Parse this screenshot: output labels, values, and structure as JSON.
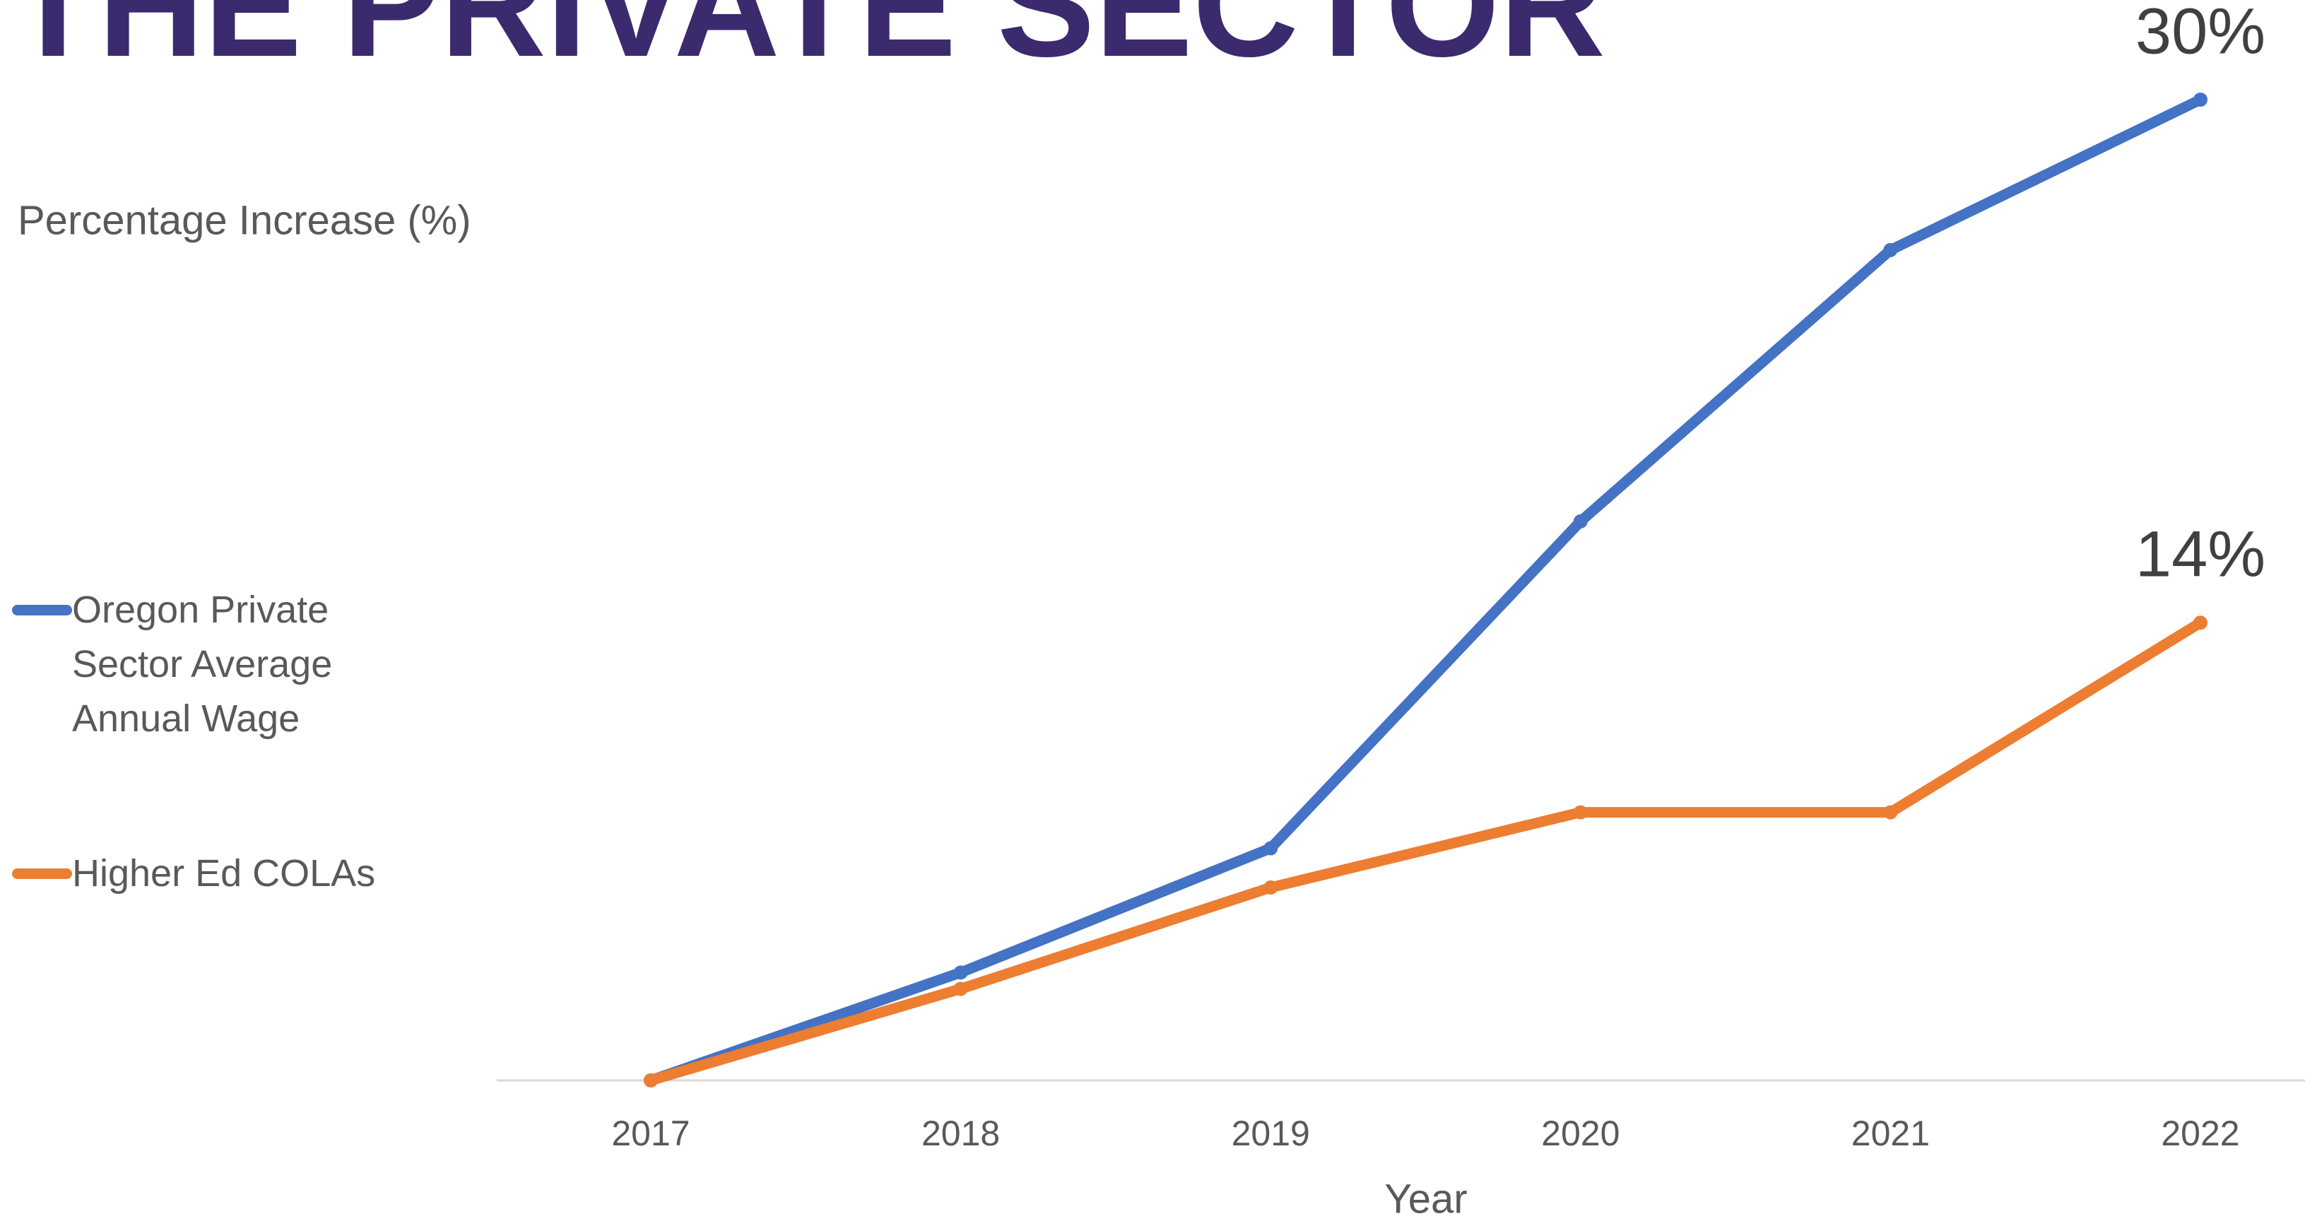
{
  "chart_data": {
    "type": "line",
    "title": "THE PRIVATE SECTOR",
    "y_label": "Percentage Increase (%)",
    "x_label": "Year",
    "categories": [
      "2017",
      "2018",
      "2019",
      "2020",
      "2021",
      "2022"
    ],
    "series": [
      {
        "name": "Oregon Private Sector Average Annual Wage",
        "color": "#4472c4",
        "values": [
          0,
          3.3,
          7.1,
          17.1,
          25.4,
          30
        ],
        "value_labels": [
          null,
          null,
          null,
          null,
          null,
          "30%"
        ]
      },
      {
        "name": "Higher Ed COLAs",
        "color": "#ed7d31",
        "values": [
          0,
          2.8,
          5.9,
          8.2,
          8.2,
          14
        ],
        "value_labels": [
          null,
          null,
          null,
          null,
          null,
          "14%"
        ]
      }
    ],
    "ylim": [
      0,
      30
    ],
    "legend": "left"
  }
}
